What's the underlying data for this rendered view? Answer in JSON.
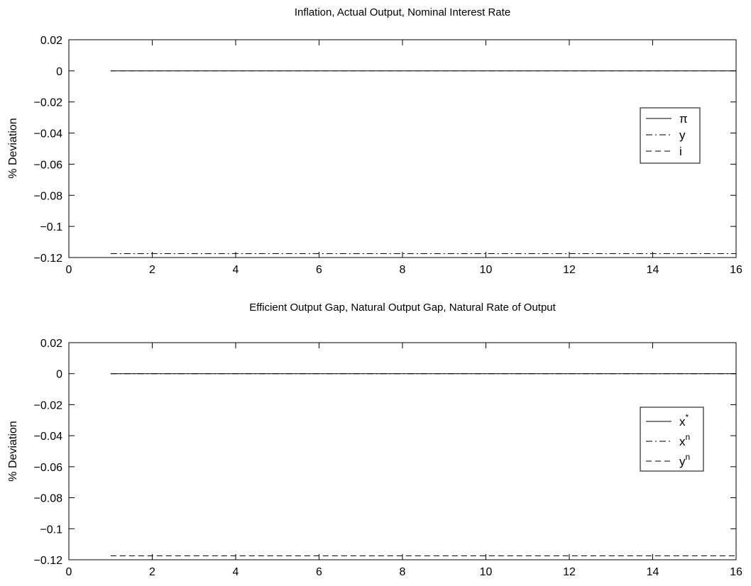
{
  "chart_data": [
    {
      "type": "line",
      "title": "Inflation, Actual Output, Nominal Interest Rate",
      "xlabel": "",
      "ylabel": "% Deviation",
      "xlim": [
        0,
        16
      ],
      "ylim": [
        -0.12,
        0.02
      ],
      "grid": false,
      "legend_position": "right",
      "x_ticks": [
        "0",
        "2",
        "4",
        "6",
        "8",
        "10",
        "12",
        "14",
        "16"
      ],
      "y_ticks": [
        "0.02",
        "0",
        "−0.02",
        "−0.04",
        "−0.06",
        "−0.08",
        "−0.1",
        "−0.12"
      ],
      "x": [
        1,
        16
      ],
      "series": [
        {
          "name": "π",
          "sup": "",
          "style": "solid",
          "values": [
            0,
            0
          ]
        },
        {
          "name": "y",
          "sup": "",
          "style": "dashdot",
          "values": [
            -0.1175,
            -0.1175
          ]
        },
        {
          "name": "i",
          "sup": "",
          "style": "dashed",
          "values": [
            0,
            0
          ]
        }
      ]
    },
    {
      "type": "line",
      "title": "Efficient Output Gap, Natural Output Gap, Natural Rate of Output",
      "xlabel": "",
      "ylabel": "% Deviation",
      "xlim": [
        0,
        16
      ],
      "ylim": [
        -0.12,
        0.02
      ],
      "grid": false,
      "legend_position": "right",
      "x_ticks": [
        "0",
        "2",
        "4",
        "6",
        "8",
        "10",
        "12",
        "14",
        "16"
      ],
      "y_ticks": [
        "0.02",
        "0",
        "−0.02",
        "−0.04",
        "−0.06",
        "−0.08",
        "−0.1",
        "−0.12"
      ],
      "x": [
        1,
        16
      ],
      "series": [
        {
          "name": "x",
          "sup": "*",
          "style": "solid",
          "values": [
            0,
            0
          ]
        },
        {
          "name": "x",
          "sup": "n",
          "style": "dashdot",
          "values": [
            0,
            0
          ]
        },
        {
          "name": "y",
          "sup": "n",
          "style": "dashed",
          "values": [
            -0.1175,
            -0.1175
          ]
        }
      ]
    }
  ]
}
